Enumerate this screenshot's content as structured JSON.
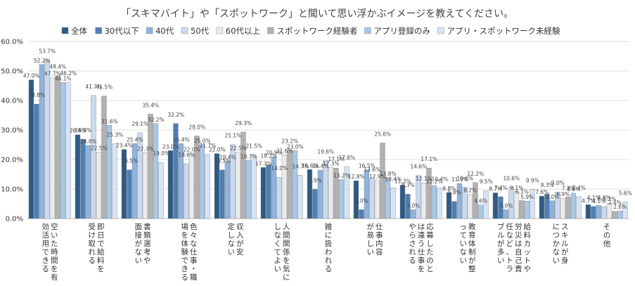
{
  "chart_data": {
    "type": "bar",
    "title": "「スキマバイト」や「スポットワーク」と聞いて思い浮かぶイメージを教えてください。",
    "ylim": [
      0,
      60
    ],
    "yticks": [
      "0.0%",
      "10.0%",
      "20.0%",
      "30.0%",
      "40.0%",
      "50.0%",
      "60.0%"
    ],
    "legend_position": "top",
    "categories": [
      "空いた時間を有効活用できる",
      "即日で給料を受け取れる",
      "書類選考や面接がない",
      "色々な仕事・職場を体験できる",
      "収入が安定しない",
      "人間関係を気にしなくてよい",
      "雑に扱われる",
      "仕事内容が易しい",
      "応募したのとは違う仕事をやらされる",
      "教育体制が整っていない",
      "給料カットや労災は自己責任など、トラブルが多い",
      "スキルが身につかない",
      "その他"
    ],
    "series": [
      {
        "name": "全体",
        "color": "#2e5a84",
        "values": [
          47.0,
          28.4,
          23.4,
          23.0,
          22.0,
          17.3,
          16.6,
          12.8,
          11.3,
          8.8,
          8.7,
          7.6,
          4.7
        ]
      },
      {
        "name": "30代以下",
        "color": "#4d7fb3",
        "values": [
          38.8,
          26.9,
          16.5,
          32.2,
          16.5,
          18.2,
          9.9,
          3.0,
          8.3,
          5.8,
          7.4,
          8.3,
          4.1
        ]
      },
      {
        "name": "40代",
        "color": "#8fb3dc",
        "values": [
          52.2,
          24.8,
          25.4,
          25.4,
          19.4,
          20.9,
          16.4,
          16.5,
          3.0,
          11.9,
          3.0,
          6.0,
          4.5
        ]
      },
      {
        "name": "50代",
        "color": "#c9daf0",
        "values": [
          53.7,
          41.7,
          29.1,
          18.6,
          25.1,
          14.0,
          19.6,
          13.6,
          14.6,
          10.6,
          10.6,
          9.0,
          4.0
        ]
      },
      {
        "name": "60代以上",
        "color": "#ebebeb",
        "values": [
          47.7,
          22.5,
          22.3,
          22.0,
          22.5,
          21.6,
          17.3,
          12.9,
          12.1,
          8.2,
          9.1,
          6.9,
          5.2
        ]
      },
      {
        "name": "スポットワーク経験者",
        "color": "#b3b0b1",
        "values": [
          48.4,
          41.5,
          35.4,
          28.0,
          29.3,
          23.2,
          17.1,
          25.6,
          17.1,
          12.2,
          6.1,
          7.3,
          2.4
        ]
      },
      {
        "name": "アプリ登録のみ",
        "color": "#a9c8e8",
        "values": [
          46.1,
          31.6,
          32.2,
          25.0,
          19.7,
          23.0,
          13.2,
          13.8,
          11.2,
          4.6,
          5.9,
          8.6,
          2.6
        ]
      },
      {
        "name": "アプリ・スポットワーク未経験",
        "color": "#d6e4f5",
        "values": [
          46.2,
          25.3,
          19.0,
          21.7,
          21.5,
          14.7,
          17.6,
          10.4,
          10.4,
          9.5,
          9.9,
          7.4,
          5.6
        ]
      }
    ]
  }
}
